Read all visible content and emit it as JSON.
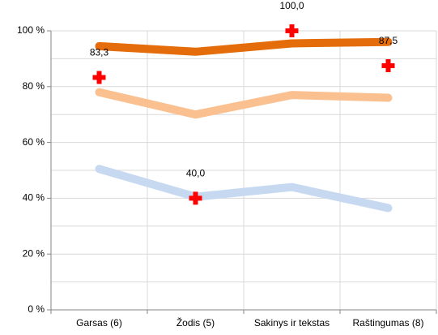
{
  "chart_data": {
    "type": "line",
    "categories": [
      "Garsas (6)",
      "Žodis (5)",
      "Sakinys ir tekstas",
      "Raštingumas (8)"
    ],
    "series": [
      {
        "color": "#e46c0a",
        "values": [
          94.5,
          92.5,
          95.5,
          96
        ]
      },
      {
        "color": "#fac090",
        "values": [
          78,
          70,
          77,
          76
        ]
      },
      {
        "color": "#c6d9f1",
        "values": [
          50.5,
          40.5,
          44,
          36.5
        ]
      },
      {
        "color": "#ff0000",
        "marker": "cross",
        "values": [
          83.3,
          40.0,
          100.0,
          87.5
        ],
        "value_labels": [
          "83,3",
          "40,0",
          "100,0",
          "87,5"
        ]
      }
    ],
    "ylim": [
      0,
      100
    ],
    "yticks": [
      {
        "value": 0,
        "label": "0 %"
      },
      {
        "value": 20,
        "label": "20 %"
      },
      {
        "value": 40,
        "label": "40 %"
      },
      {
        "value": 60,
        "label": "60 %"
      },
      {
        "value": 80,
        "label": "80 %"
      },
      {
        "value": 100,
        "label": "100 %"
      }
    ],
    "grid_yticks": [
      0,
      10,
      20,
      30,
      40,
      50,
      60,
      70,
      80,
      90,
      100
    ],
    "grid": true
  }
}
